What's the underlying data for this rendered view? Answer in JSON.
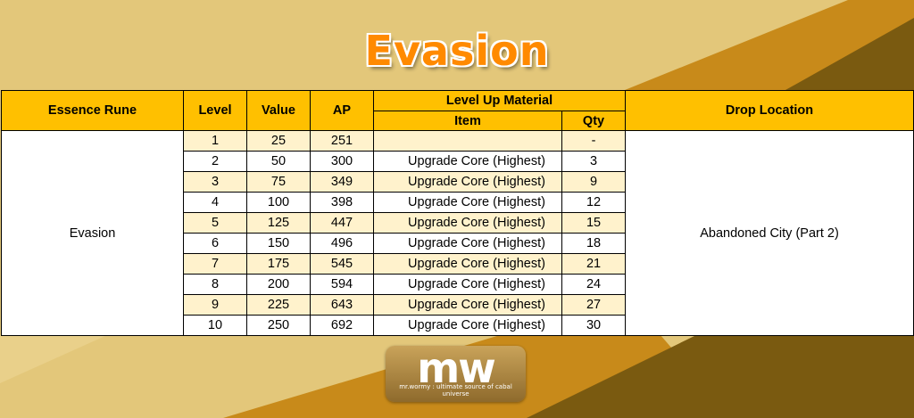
{
  "colors": {
    "background_light": "#e3c77a",
    "background_orange": "#c88a1a",
    "background_dark": "#7a5a10",
    "header_fill": "#ffc000",
    "band_fill": "#fff2cc",
    "title_color": "#ff8a00"
  },
  "title": "Evasion",
  "table": {
    "headers": {
      "essence_rune": "Essence Rune",
      "level": "Level",
      "value": "Value",
      "ap": "AP",
      "level_up_material": "Level Up Material",
      "item": "Item",
      "qty": "Qty",
      "drop_location": "Drop Location"
    },
    "essence_rune": "Evasion",
    "drop_location": "Abandoned City (Part 2)",
    "rows": [
      {
        "level": "1",
        "value": "25",
        "ap": "251",
        "item": "",
        "qty": "-"
      },
      {
        "level": "2",
        "value": "50",
        "ap": "300",
        "item": "Upgrade Core (Highest)",
        "qty": "3"
      },
      {
        "level": "3",
        "value": "75",
        "ap": "349",
        "item": "Upgrade Core (Highest)",
        "qty": "9"
      },
      {
        "level": "4",
        "value": "100",
        "ap": "398",
        "item": "Upgrade Core (Highest)",
        "qty": "12"
      },
      {
        "level": "5",
        "value": "125",
        "ap": "447",
        "item": "Upgrade Core (Highest)",
        "qty": "15"
      },
      {
        "level": "6",
        "value": "150",
        "ap": "496",
        "item": "Upgrade Core (Highest)",
        "qty": "18"
      },
      {
        "level": "7",
        "value": "175",
        "ap": "545",
        "item": "Upgrade Core (Highest)",
        "qty": "21"
      },
      {
        "level": "8",
        "value": "200",
        "ap": "594",
        "item": "Upgrade Core (Highest)",
        "qty": "24"
      },
      {
        "level": "9",
        "value": "225",
        "ap": "643",
        "item": "Upgrade Core (Highest)",
        "qty": "27"
      },
      {
        "level": "10",
        "value": "250",
        "ap": "692",
        "item": "Upgrade Core (Highest)",
        "qty": "30"
      }
    ]
  },
  "logo": {
    "main": "mw",
    "tagline": "mr.wormy : ultimate source of cabal universe"
  }
}
